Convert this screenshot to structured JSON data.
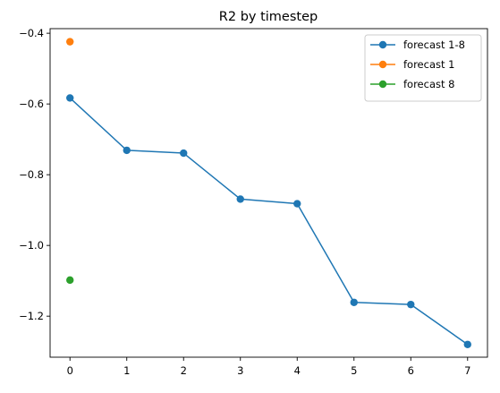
{
  "chart_data": {
    "type": "line",
    "title": "R2 by timestep",
    "xlabel": "",
    "ylabel": "",
    "xlim": [
      -0.35,
      7.35
    ],
    "ylim": [
      -1.316,
      -0.387
    ],
    "x_ticks": [
      0,
      1,
      2,
      3,
      4,
      5,
      6,
      7
    ],
    "y_ticks": [
      -1.2,
      -1.0,
      -0.8,
      -0.6,
      -0.4
    ],
    "x_tick_labels": [
      "0",
      "1",
      "2",
      "3",
      "4",
      "5",
      "6",
      "7"
    ],
    "y_tick_labels": [
      "−1.2",
      "−1.0",
      "−0.8",
      "−0.6",
      "−0.4"
    ],
    "grid": false,
    "legend_position": "top-right",
    "series": [
      {
        "name": "forecast 1-8",
        "color": "#1f77b4",
        "marker": "circle",
        "x": [
          0,
          1,
          2,
          3,
          4,
          5,
          6,
          7
        ],
        "y": [
          -0.583,
          -0.731,
          -0.739,
          -0.869,
          -0.882,
          -1.161,
          -1.167,
          -1.28
        ]
      },
      {
        "name": "forecast 1",
        "color": "#ff7f0e",
        "marker": "circle",
        "x": [
          0
        ],
        "y": [
          -0.424
        ]
      },
      {
        "name": "forecast 8",
        "color": "#2ca02c",
        "marker": "circle",
        "x": [
          0
        ],
        "y": [
          -1.098
        ]
      }
    ]
  }
}
